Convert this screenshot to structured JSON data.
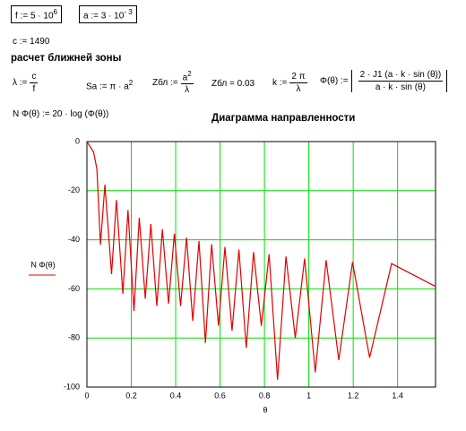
{
  "worksheet": {
    "f_def": {
      "text": "f := 5 · 10",
      "exponent": "6"
    },
    "a_def": {
      "text": "a := 3 · 10",
      "exponent": "- 3"
    },
    "c_def": "c := 1490",
    "section_title": "расчет ближней зоны",
    "lambda_def": {
      "lhs": "λ :=",
      "num": "c",
      "den": "f"
    },
    "sa_def": {
      "text": "Sa := π · a",
      "exponent": "2"
    },
    "z_def": {
      "lhs": "Zбл :=",
      "num": "a",
      "num_exponent": "2",
      "den": "λ"
    },
    "z_value": "Zбл = 0.03",
    "k_def": {
      "lhs": "k :=",
      "num": "2 π",
      "den": "λ"
    },
    "phi_def": {
      "lhs": "Φ(θ) :=",
      "num": "2 · J1 (a · k · sin (θ))",
      "den": "a · k · sin (θ)"
    },
    "n_def": "N Φ(θ) := 20 · log (Φ(θ))"
  },
  "chart_data": {
    "type": "line",
    "title": "Диаграмма направленности",
    "x_label": "θ",
    "y_label": "N Φ(θ)",
    "x": [
      0,
      0.03,
      0.045,
      0.061,
      0.081,
      0.111,
      0.133,
      0.162,
      0.185,
      0.212,
      0.236,
      0.263,
      0.288,
      0.315,
      0.34,
      0.368,
      0.394,
      0.422,
      0.449,
      0.477,
      0.505,
      0.534,
      0.562,
      0.593,
      0.622,
      0.654,
      0.685,
      0.718,
      0.751,
      0.786,
      0.821,
      0.859,
      0.897,
      0.939,
      0.981,
      1.029,
      1.078,
      1.135,
      1.197,
      1.274,
      1.373,
      1.571
    ],
    "values": [
      0,
      -4.3,
      -11.2,
      -42,
      -17.6,
      -54,
      -23.8,
      -62,
      -27.9,
      -69,
      -31,
      -64,
      -33.6,
      -67,
      -35.7,
      -66,
      -37.5,
      -67,
      -39.1,
      -73,
      -40.5,
      -82,
      -41.8,
      -75,
      -42.9,
      -77,
      -44,
      -84,
      -45,
      -75,
      -45.9,
      -97,
      -46.8,
      -80,
      -47.6,
      -94,
      -48.3,
      -89,
      -49.1,
      -88,
      -49.7,
      -59
    ],
    "color": "#e00000",
    "xlim": [
      0,
      1.571
    ],
    "ylim": [
      -100,
      0
    ],
    "xticks": [
      0,
      0.2,
      0.4,
      0.6,
      0.8,
      1,
      1.2,
      1.4
    ],
    "yticks": [
      -100,
      -80,
      -60,
      -40,
      -20,
      0
    ],
    "grid": true,
    "grid_color": "#00e000"
  }
}
